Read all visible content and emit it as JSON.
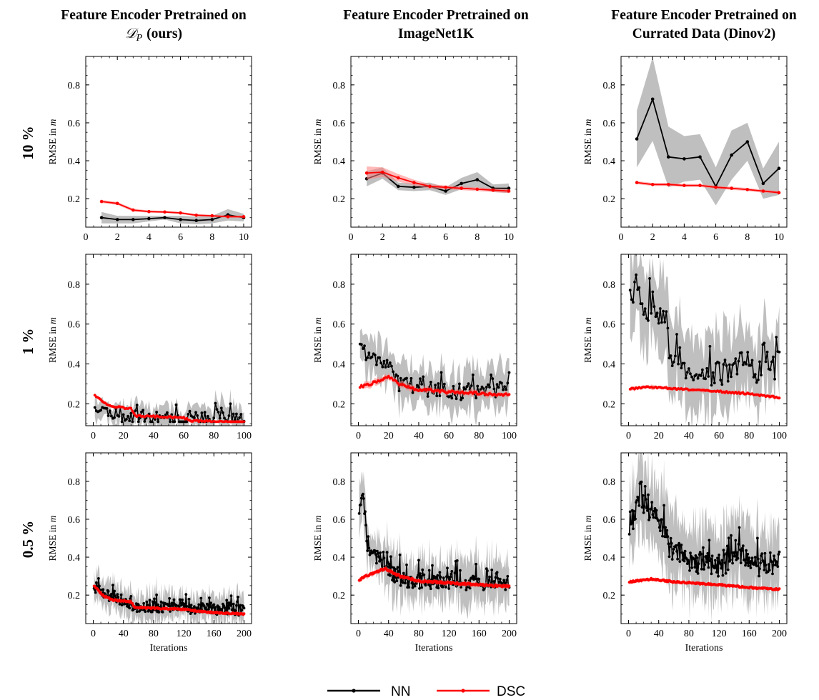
{
  "column_titles": [
    {
      "line1": "Feature Encoder Pretrained on",
      "line2_math": "𝒟",
      "line2_sub": "P",
      "line2_rest": "(ours)"
    },
    {
      "line1": "Feature Encoder Pretrained on",
      "line2": "ImageNet1K"
    },
    {
      "line1": "Feature Encoder Pretrained on",
      "line2": "Currated Data (Dinov2)"
    }
  ],
  "row_labels": [
    "10 %",
    "1 %",
    "0.5 %"
  ],
  "legend": [
    {
      "label": "NN",
      "color": "#000000"
    },
    {
      "label": "DSC",
      "color": "#ff0000"
    }
  ],
  "chart_data": [
    {
      "type": "line",
      "row": "10 %",
      "column": "Feature Encoder Pretrained on 𝒟P (ours)",
      "xlabel": "",
      "ylabel": "RMSE in m",
      "xlim": [
        0,
        10.5
      ],
      "ylim": [
        0.05,
        0.95
      ],
      "xticks": [
        0,
        2,
        4,
        6,
        8,
        10
      ],
      "yticks": [
        0.2,
        0.4,
        0.6,
        0.8
      ],
      "x": [
        1,
        2,
        3,
        4,
        5,
        6,
        7,
        8,
        9,
        10
      ],
      "series": [
        {
          "name": "NN",
          "values": [
            0.1,
            0.09,
            0.09,
            0.095,
            0.1,
            0.09,
            0.085,
            0.09,
            0.115,
            0.1
          ],
          "band": [
            0.03,
            0.02,
            0.02,
            0.015,
            0.01,
            0.02,
            0.02,
            0.02,
            0.03,
            0.02
          ]
        },
        {
          "name": "DSC",
          "values": [
            0.185,
            0.175,
            0.14,
            0.132,
            0.13,
            0.125,
            0.113,
            0.11,
            0.105,
            0.105
          ],
          "band": [
            0.008,
            0.008,
            0.008,
            0.006,
            0.006,
            0.006,
            0.006,
            0.006,
            0.006,
            0.006
          ]
        }
      ]
    },
    {
      "type": "line",
      "row": "10 %",
      "column": "Feature Encoder Pretrained on ImageNet1K",
      "xlabel": "",
      "ylabel": "RMSE in m",
      "xlim": [
        0,
        10.5
      ],
      "ylim": [
        0.05,
        0.95
      ],
      "xticks": [
        0,
        2,
        4,
        6,
        8,
        10
      ],
      "yticks": [
        0.2,
        0.4,
        0.6,
        0.8
      ],
      "x": [
        1,
        2,
        3,
        4,
        5,
        6,
        7,
        8,
        9,
        10
      ],
      "series": [
        {
          "name": "NN",
          "values": [
            0.305,
            0.335,
            0.265,
            0.26,
            0.265,
            0.24,
            0.28,
            0.3,
            0.255,
            0.255
          ],
          "band": [
            0.04,
            0.03,
            0.02,
            0.02,
            0.02,
            0.02,
            0.03,
            0.04,
            0.02,
            0.025
          ]
        },
        {
          "name": "DSC",
          "values": [
            0.335,
            0.34,
            0.31,
            0.285,
            0.265,
            0.26,
            0.255,
            0.25,
            0.245,
            0.24
          ],
          "band": [
            0.035,
            0.025,
            0.02,
            0.015,
            0.012,
            0.01,
            0.01,
            0.01,
            0.01,
            0.01
          ]
        }
      ]
    },
    {
      "type": "line",
      "row": "10 %",
      "column": "Feature Encoder Pretrained on Currated Data (Dinov2)",
      "xlabel": "",
      "ylabel": "RMSE in m",
      "xlim": [
        0,
        10.5
      ],
      "ylim": [
        0.05,
        0.95
      ],
      "xticks": [
        0,
        2,
        4,
        6,
        8,
        10
      ],
      "yticks": [
        0.2,
        0.4,
        0.6,
        0.8
      ],
      "x": [
        1,
        2,
        3,
        4,
        5,
        6,
        7,
        8,
        9,
        10
      ],
      "series": [
        {
          "name": "NN",
          "values": [
            0.515,
            0.725,
            0.42,
            0.41,
            0.42,
            0.265,
            0.43,
            0.5,
            0.28,
            0.36
          ],
          "band": [
            0.15,
            0.22,
            0.16,
            0.12,
            0.12,
            0.1,
            0.13,
            0.1,
            0.08,
            0.14
          ]
        },
        {
          "name": "DSC",
          "values": [
            0.285,
            0.275,
            0.275,
            0.27,
            0.27,
            0.26,
            0.255,
            0.248,
            0.24,
            0.232
          ],
          "band": [
            0.008,
            0.008,
            0.008,
            0.008,
            0.008,
            0.008,
            0.008,
            0.008,
            0.008,
            0.008
          ]
        }
      ]
    },
    {
      "type": "line",
      "row": "1 %",
      "column": "Feature Encoder Pretrained on 𝒟P (ours)",
      "xlabel": "",
      "ylabel": "RMSE in m",
      "xlim": [
        -5,
        105
      ],
      "ylim": [
        0.09,
        0.95
      ],
      "xticks": [
        0,
        20,
        40,
        60,
        80,
        100
      ],
      "yticks": [
        0.2,
        0.4,
        0.6,
        0.8
      ],
      "noisy": true,
      "series": [
        {
          "name": "NN",
          "n": 100,
          "mean": [
            [
              1,
              0.2
            ],
            [
              10,
              0.15
            ],
            [
              30,
              0.13
            ],
            [
              60,
              0.13
            ],
            [
              100,
              0.12
            ]
          ],
          "amp": 0.035,
          "spike": 0.06,
          "band": 0.05,
          "seed": 11
        },
        {
          "name": "DSC",
          "n": 100,
          "mean": [
            [
              1,
              0.245
            ],
            [
              5,
              0.22
            ],
            [
              10,
              0.19
            ],
            [
              25,
              0.175
            ],
            [
              28,
              0.14
            ],
            [
              60,
              0.13
            ],
            [
              65,
              0.115
            ],
            [
              100,
              0.105
            ]
          ],
          "amp": 0.004,
          "spike": 0.0,
          "band": 0.006,
          "seed": 12
        }
      ]
    },
    {
      "type": "line",
      "row": "1 %",
      "column": "Feature Encoder Pretrained on ImageNet1K",
      "xlabel": "",
      "ylabel": "RMSE in m",
      "xlim": [
        -5,
        105
      ],
      "ylim": [
        0.09,
        0.95
      ],
      "xticks": [
        0,
        20,
        40,
        60,
        80,
        100
      ],
      "yticks": [
        0.2,
        0.4,
        0.6,
        0.8
      ],
      "noisy": true,
      "series": [
        {
          "name": "NN",
          "n": 100,
          "mean": [
            [
              1,
              0.52
            ],
            [
              5,
              0.45
            ],
            [
              20,
              0.4
            ],
            [
              27,
              0.3
            ],
            [
              40,
              0.28
            ],
            [
              60,
              0.26
            ],
            [
              100,
              0.26
            ]
          ],
          "amp": 0.04,
          "spike": 0.09,
          "band": 0.09,
          "seed": 21
        },
        {
          "name": "DSC",
          "n": 100,
          "mean": [
            [
              1,
              0.285
            ],
            [
              8,
              0.3
            ],
            [
              20,
              0.335
            ],
            [
              27,
              0.3
            ],
            [
              40,
              0.27
            ],
            [
              60,
              0.26
            ],
            [
              100,
              0.245
            ]
          ],
          "amp": 0.006,
          "spike": 0.0,
          "band": 0.012,
          "seed": 22
        }
      ]
    },
    {
      "type": "line",
      "row": "1 %",
      "column": "Feature Encoder Pretrained on Currated Data (Dinov2)",
      "xlabel": "",
      "ylabel": "RMSE in m",
      "xlim": [
        -5,
        105
      ],
      "ylim": [
        0.09,
        0.95
      ],
      "xticks": [
        0,
        20,
        40,
        60,
        80,
        100
      ],
      "yticks": [
        0.2,
        0.4,
        0.6,
        0.8
      ],
      "noisy": true,
      "series": [
        {
          "name": "NN",
          "n": 100,
          "mean": [
            [
              1,
              0.8
            ],
            [
              10,
              0.68
            ],
            [
              22,
              0.65
            ],
            [
              28,
              0.45
            ],
            [
              40,
              0.38
            ],
            [
              60,
              0.34
            ],
            [
              75,
              0.42
            ],
            [
              85,
              0.36
            ],
            [
              100,
              0.4
            ]
          ],
          "amp": 0.07,
          "spike": 0.12,
          "band": 0.16,
          "seed": 31
        },
        {
          "name": "DSC",
          "n": 100,
          "mean": [
            [
              1,
              0.275
            ],
            [
              15,
              0.285
            ],
            [
              30,
              0.275
            ],
            [
              55,
              0.265
            ],
            [
              80,
              0.25
            ],
            [
              100,
              0.23
            ]
          ],
          "amp": 0.004,
          "spike": 0.0,
          "band": 0.008,
          "seed": 32
        }
      ]
    },
    {
      "type": "line",
      "row": "0.5 %",
      "column": "Feature Encoder Pretrained on 𝒟P (ours)",
      "xlabel": "Iterations",
      "ylabel": "RMSE in m",
      "xlim": [
        -10,
        210
      ],
      "ylim": [
        0.05,
        0.95
      ],
      "xticks": [
        0,
        40,
        80,
        120,
        160,
        200
      ],
      "yticks": [
        0.2,
        0.4,
        0.6,
        0.8
      ],
      "noisy": true,
      "series": [
        {
          "name": "NN",
          "n": 200,
          "mean": [
            [
              1,
              0.25
            ],
            [
              15,
              0.2
            ],
            [
              40,
              0.17
            ],
            [
              55,
              0.14
            ],
            [
              100,
              0.13
            ],
            [
              150,
              0.13
            ],
            [
              200,
              0.12
            ]
          ],
          "amp": 0.03,
          "spike": 0.06,
          "band": 0.06,
          "seed": 41
        },
        {
          "name": "DSC",
          "n": 200,
          "mean": [
            [
              1,
              0.25
            ],
            [
              12,
              0.2
            ],
            [
              25,
              0.175
            ],
            [
              50,
              0.165
            ],
            [
              55,
              0.135
            ],
            [
              120,
              0.125
            ],
            [
              150,
              0.11
            ],
            [
              200,
              0.1
            ]
          ],
          "amp": 0.004,
          "spike": 0.0,
          "band": 0.006,
          "seed": 42
        }
      ]
    },
    {
      "type": "line",
      "row": "0.5 %",
      "column": "Feature Encoder Pretrained on ImageNet1K",
      "xlabel": "Iterations",
      "ylabel": "RMSE in m",
      "xlim": [
        -10,
        210
      ],
      "ylim": [
        0.05,
        0.95
      ],
      "xticks": [
        0,
        40,
        80,
        120,
        160,
        200
      ],
      "yticks": [
        0.2,
        0.4,
        0.6,
        0.8
      ],
      "noisy": true,
      "series": [
        {
          "name": "NN",
          "n": 200,
          "mean": [
            [
              1,
              0.65
            ],
            [
              6,
              0.75
            ],
            [
              12,
              0.45
            ],
            [
              30,
              0.37
            ],
            [
              50,
              0.3
            ],
            [
              60,
              0.28
            ],
            [
              100,
              0.27
            ],
            [
              200,
              0.26
            ]
          ],
          "amp": 0.04,
          "spike": 0.1,
          "band": 0.1,
          "seed": 51
        },
        {
          "name": "DSC",
          "n": 200,
          "mean": [
            [
              1,
              0.28
            ],
            [
              10,
              0.3
            ],
            [
              35,
              0.34
            ],
            [
              55,
              0.3
            ],
            [
              80,
              0.275
            ],
            [
              140,
              0.26
            ],
            [
              200,
              0.245
            ]
          ],
          "amp": 0.005,
          "spike": 0.0,
          "band": 0.01,
          "seed": 52
        }
      ]
    },
    {
      "type": "line",
      "row": "0.5 %",
      "column": "Feature Encoder Pretrained on Currated Data (Dinov2)",
      "xlabel": "Iterations",
      "ylabel": "RMSE in m",
      "xlim": [
        -10,
        210
      ],
      "ylim": [
        0.05,
        0.95
      ],
      "xticks": [
        0,
        40,
        80,
        120,
        160,
        200
      ],
      "yticks": [
        0.2,
        0.4,
        0.6,
        0.8
      ],
      "noisy": true,
      "series": [
        {
          "name": "NN",
          "n": 200,
          "mean": [
            [
              1,
              0.55
            ],
            [
              15,
              0.7
            ],
            [
              40,
              0.6
            ],
            [
              55,
              0.45
            ],
            [
              80,
              0.38
            ],
            [
              120,
              0.35
            ],
            [
              150,
              0.43
            ],
            [
              170,
              0.35
            ],
            [
              200,
              0.38
            ]
          ],
          "amp": 0.06,
          "spike": 0.12,
          "band": 0.16,
          "seed": 61
        },
        {
          "name": "DSC",
          "n": 200,
          "mean": [
            [
              1,
              0.27
            ],
            [
              30,
              0.285
            ],
            [
              60,
              0.27
            ],
            [
              120,
              0.255
            ],
            [
              160,
              0.24
            ],
            [
              200,
              0.23
            ]
          ],
          "amp": 0.004,
          "spike": 0.0,
          "band": 0.008,
          "seed": 62
        }
      ]
    }
  ]
}
